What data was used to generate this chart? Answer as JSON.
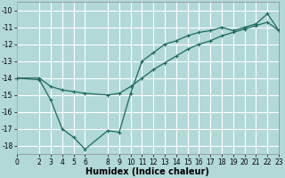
{
  "title": "",
  "xlabel": "Humidex (Indice chaleur)",
  "background_color": "#b2d8d8",
  "grid_color": "#ffffff",
  "line_color": "#1a6b5a",
  "x_zigzag": [
    0,
    2,
    3,
    4,
    5,
    6,
    8,
    9,
    10,
    11,
    12,
    13,
    14,
    15,
    16,
    17,
    18,
    19,
    20,
    21,
    22,
    23
  ],
  "y_zigzag": [
    -14.0,
    -14.1,
    -15.3,
    -17.0,
    -17.5,
    -18.2,
    -17.1,
    -17.2,
    -14.9,
    -13.0,
    -12.5,
    -12.0,
    -11.8,
    -11.5,
    -11.3,
    -11.2,
    -11.0,
    -11.2,
    -11.0,
    -10.8,
    -10.2,
    -11.2
  ],
  "x_straight": [
    0,
    2,
    3,
    4,
    5,
    6,
    8,
    9,
    10,
    11,
    12,
    13,
    14,
    15,
    16,
    17,
    18,
    19,
    20,
    21,
    22,
    23
  ],
  "y_straight": [
    -14.0,
    -14.0,
    -14.5,
    -14.7,
    -14.8,
    -14.9,
    -15.0,
    -14.9,
    -14.5,
    -14.0,
    -13.5,
    -13.1,
    -12.7,
    -12.3,
    -12.0,
    -11.8,
    -11.5,
    -11.3,
    -11.1,
    -10.9,
    -10.7,
    -11.2
  ],
  "xlim": [
    0,
    23
  ],
  "ylim": [
    -18.5,
    -9.5
  ],
  "yticks": [
    -18,
    -17,
    -16,
    -15,
    -14,
    -13,
    -12,
    -11,
    -10
  ],
  "xticks": [
    0,
    2,
    3,
    4,
    5,
    6,
    8,
    9,
    10,
    11,
    12,
    13,
    14,
    15,
    16,
    17,
    18,
    19,
    20,
    21,
    22,
    23
  ],
  "xlabel_fontsize": 7,
  "tick_fontsize": 5.5
}
